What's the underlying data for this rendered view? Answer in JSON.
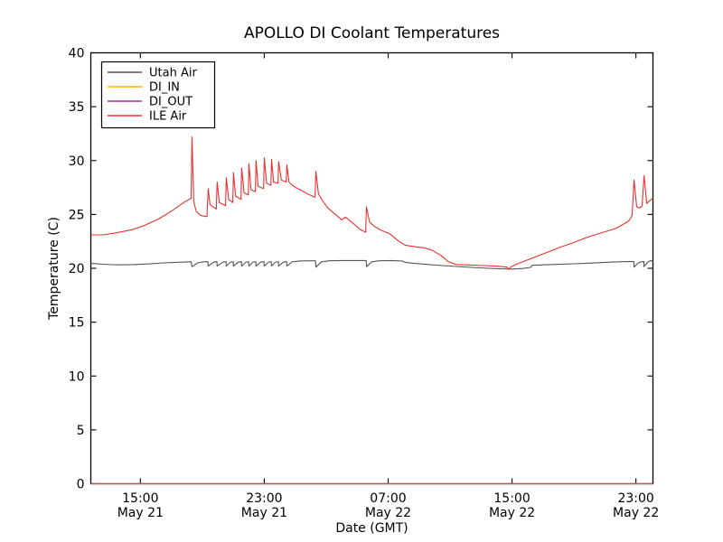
{
  "figure": {
    "background": "#ffffff",
    "frame_color": "#000000"
  },
  "chart_data": {
    "type": "line",
    "title": "APOLLO DI Coolant Temperatures",
    "xlabel": "Date (GMT)",
    "ylabel": "Temperature (C)",
    "grid": false,
    "legend_position": "upper left",
    "ylim": [
      0,
      40
    ],
    "yticks": [
      "0",
      "5",
      "10",
      "15",
      "20",
      "25",
      "30",
      "35",
      "40"
    ],
    "ytick_values": [
      0,
      5,
      10,
      15,
      20,
      25,
      30,
      35,
      40
    ],
    "x_unit": "hours since May 21 00:00 GMT",
    "xlim": [
      11.8,
      48.1
    ],
    "xticks": [
      {
        "t": 15,
        "time": "15:00",
        "date": "May 21"
      },
      {
        "t": 23,
        "time": "23:00",
        "date": "May 21"
      },
      {
        "t": 31,
        "time": "07:00",
        "date": "May 22"
      },
      {
        "t": 39,
        "time": "15:00",
        "date": "May 22"
      },
      {
        "t": 47,
        "time": "23:00",
        "date": "May 22"
      }
    ],
    "series": [
      {
        "name": "Utah Air",
        "color": "#555555",
        "width": 1.1,
        "opacity": 1,
        "points": [
          [
            11.8,
            20.45
          ],
          [
            12.6,
            20.38
          ],
          [
            13.5,
            20.32
          ],
          [
            14.5,
            20.34
          ],
          [
            15.5,
            20.4
          ],
          [
            16.5,
            20.5
          ],
          [
            17.4,
            20.56
          ],
          [
            18.28,
            20.6
          ],
          [
            18.33,
            20.15
          ],
          [
            18.7,
            20.5
          ],
          [
            19.1,
            20.6
          ],
          [
            19.36,
            20.62
          ],
          [
            19.38,
            20.2
          ],
          [
            19.7,
            20.55
          ],
          [
            19.94,
            20.62
          ],
          [
            19.96,
            20.2
          ],
          [
            20.3,
            20.55
          ],
          [
            20.53,
            20.62
          ],
          [
            20.55,
            20.2
          ],
          [
            20.8,
            20.55
          ],
          [
            20.99,
            20.62
          ],
          [
            21.01,
            20.2
          ],
          [
            21.3,
            20.55
          ],
          [
            21.52,
            20.62
          ],
          [
            21.54,
            20.2
          ],
          [
            21.8,
            20.55
          ],
          [
            21.99,
            20.62
          ],
          [
            22.01,
            20.2
          ],
          [
            22.25,
            20.55
          ],
          [
            22.45,
            20.62
          ],
          [
            22.47,
            20.2
          ],
          [
            22.75,
            20.55
          ],
          [
            22.98,
            20.62
          ],
          [
            23.0,
            20.2
          ],
          [
            23.25,
            20.55
          ],
          [
            23.45,
            20.62
          ],
          [
            23.47,
            20.2
          ],
          [
            23.7,
            20.55
          ],
          [
            23.91,
            20.62
          ],
          [
            23.93,
            20.2
          ],
          [
            24.2,
            20.55
          ],
          [
            24.44,
            20.62
          ],
          [
            24.46,
            20.2
          ],
          [
            24.8,
            20.6
          ],
          [
            25.3,
            20.68
          ],
          [
            25.9,
            20.7
          ],
          [
            26.31,
            20.7
          ],
          [
            26.33,
            20.1
          ],
          [
            26.7,
            20.6
          ],
          [
            27.2,
            20.7
          ],
          [
            28.0,
            20.72
          ],
          [
            29.0,
            20.72
          ],
          [
            29.58,
            20.72
          ],
          [
            29.6,
            20.15
          ],
          [
            29.95,
            20.6
          ],
          [
            30.4,
            20.7
          ],
          [
            31.2,
            20.72
          ],
          [
            31.9,
            20.68
          ],
          [
            32.1,
            20.55
          ],
          [
            32.7,
            20.45
          ],
          [
            33.6,
            20.35
          ],
          [
            34.5,
            20.25
          ],
          [
            35.4,
            20.17
          ],
          [
            36.4,
            20.08
          ],
          [
            37.4,
            20.0
          ],
          [
            38.3,
            19.95
          ],
          [
            39.1,
            19.93
          ],
          [
            39.7,
            19.98
          ],
          [
            40.2,
            20.08
          ],
          [
            40.3,
            20.28
          ],
          [
            41.0,
            20.32
          ],
          [
            42.0,
            20.37
          ],
          [
            43.0,
            20.42
          ],
          [
            44.0,
            20.48
          ],
          [
            45.0,
            20.55
          ],
          [
            45.9,
            20.6
          ],
          [
            46.6,
            20.62
          ],
          [
            46.86,
            20.62
          ],
          [
            46.88,
            20.1
          ],
          [
            47.15,
            20.5
          ],
          [
            47.35,
            20.6
          ],
          [
            47.51,
            20.62
          ],
          [
            47.53,
            20.15
          ],
          [
            47.75,
            20.55
          ],
          [
            47.95,
            20.72
          ],
          [
            48.1,
            20.6
          ]
        ]
      },
      {
        "name": "DI_IN",
        "color": "#ffb000",
        "width": 1.2,
        "opacity": 1,
        "points": [
          [
            11.8,
            0
          ],
          [
            48.1,
            0
          ]
        ]
      },
      {
        "name": "DI_OUT",
        "color": "#993399",
        "width": 1.2,
        "opacity": 0.7,
        "points": [
          [
            11.8,
            0
          ],
          [
            48.1,
            0
          ]
        ]
      },
      {
        "name": "ILE Air",
        "color": "#e83030",
        "width": 1.1,
        "opacity": 1,
        "points": [
          [
            11.8,
            23.1
          ],
          [
            12.6,
            23.1
          ],
          [
            13.5,
            23.3
          ],
          [
            14.5,
            23.6
          ],
          [
            15.3,
            24.0
          ],
          [
            16.2,
            24.6
          ],
          [
            17.0,
            25.3
          ],
          [
            17.9,
            26.2
          ],
          [
            18.28,
            26.5
          ],
          [
            18.33,
            32.2
          ],
          [
            18.45,
            26.2
          ],
          [
            18.6,
            25.3
          ],
          [
            18.9,
            24.9
          ],
          [
            19.3,
            24.8
          ],
          [
            19.38,
            27.4
          ],
          [
            19.5,
            25.9
          ],
          [
            19.9,
            25.5
          ],
          [
            19.96,
            28.0
          ],
          [
            20.1,
            26.1
          ],
          [
            20.5,
            25.8
          ],
          [
            20.55,
            28.4
          ],
          [
            20.7,
            26.4
          ],
          [
            20.97,
            26.1
          ],
          [
            21.01,
            28.9
          ],
          [
            21.15,
            26.7
          ],
          [
            21.5,
            26.4
          ],
          [
            21.54,
            29.3
          ],
          [
            21.7,
            27.0
          ],
          [
            21.97,
            26.8
          ],
          [
            22.01,
            29.7
          ],
          [
            22.15,
            27.3
          ],
          [
            22.43,
            27.1
          ],
          [
            22.47,
            30.0
          ],
          [
            22.6,
            27.6
          ],
          [
            22.96,
            27.4
          ],
          [
            23.0,
            30.25
          ],
          [
            23.15,
            27.9
          ],
          [
            23.43,
            27.7
          ],
          [
            23.47,
            30.1
          ],
          [
            23.6,
            28.0
          ],
          [
            23.89,
            27.9
          ],
          [
            23.93,
            29.9
          ],
          [
            24.1,
            28.2
          ],
          [
            24.42,
            28.0
          ],
          [
            24.46,
            29.6
          ],
          [
            24.6,
            28.0
          ],
          [
            24.9,
            27.6
          ],
          [
            25.3,
            27.3
          ],
          [
            25.8,
            26.9
          ],
          [
            26.28,
            26.6
          ],
          [
            26.33,
            29.0
          ],
          [
            26.5,
            26.9
          ],
          [
            26.8,
            26.2
          ],
          [
            27.1,
            25.6
          ],
          [
            27.6,
            25.0
          ],
          [
            28.0,
            24.5
          ],
          [
            28.25,
            24.75
          ],
          [
            28.45,
            24.5
          ],
          [
            28.8,
            24.1
          ],
          [
            29.2,
            23.6
          ],
          [
            29.55,
            23.35
          ],
          [
            29.6,
            25.7
          ],
          [
            29.8,
            24.3
          ],
          [
            30.1,
            23.9
          ],
          [
            30.6,
            23.5
          ],
          [
            31.1,
            23.2
          ],
          [
            31.7,
            22.5
          ],
          [
            32.1,
            22.15
          ],
          [
            32.7,
            22.0
          ],
          [
            33.3,
            21.9
          ],
          [
            33.8,
            21.7
          ],
          [
            34.4,
            21.2
          ],
          [
            34.9,
            20.6
          ],
          [
            35.4,
            20.35
          ],
          [
            36.3,
            20.3
          ],
          [
            37.2,
            20.25
          ],
          [
            38.0,
            20.2
          ],
          [
            38.7,
            20.1
          ],
          [
            38.77,
            19.9
          ],
          [
            38.95,
            20.15
          ],
          [
            39.5,
            20.5
          ],
          [
            40.4,
            21.0
          ],
          [
            41.3,
            21.5
          ],
          [
            42.2,
            22.0
          ],
          [
            43.0,
            22.4
          ],
          [
            43.9,
            22.9
          ],
          [
            44.8,
            23.3
          ],
          [
            45.7,
            23.7
          ],
          [
            46.2,
            24.1
          ],
          [
            46.55,
            24.4
          ],
          [
            46.75,
            24.9
          ],
          [
            46.88,
            28.2
          ],
          [
            47.05,
            25.7
          ],
          [
            47.25,
            25.6
          ],
          [
            47.4,
            25.8
          ],
          [
            47.53,
            28.6
          ],
          [
            47.7,
            26.0
          ],
          [
            47.9,
            26.3
          ],
          [
            48.1,
            26.5
          ]
        ]
      }
    ]
  }
}
